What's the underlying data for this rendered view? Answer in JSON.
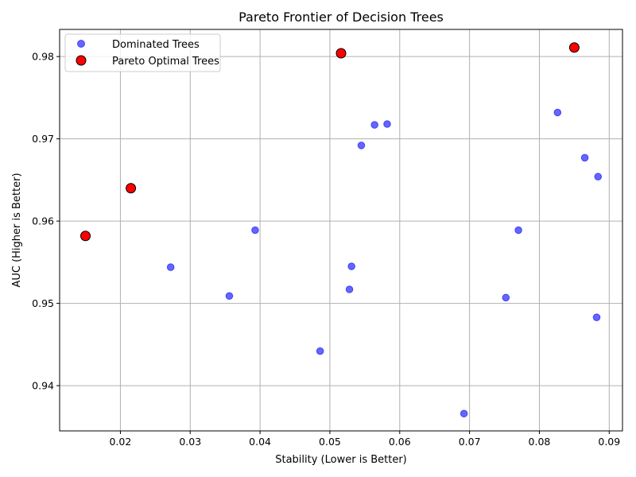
{
  "chart_data": {
    "type": "scatter",
    "title": "Pareto Frontier of Decision Trees",
    "xlabel": "Stability (Lower is Better)",
    "ylabel": "AUC (Higher is Better)",
    "xlim": [
      0.0113,
      0.0919
    ],
    "ylim": [
      0.9345,
      0.9833
    ],
    "xticks": [
      "0.02",
      "0.03",
      "0.04",
      "0.05",
      "0.06",
      "0.07",
      "0.08",
      "0.09"
    ],
    "yticks": [
      "0.94",
      "0.95",
      "0.96",
      "0.97",
      "0.98"
    ],
    "grid": true,
    "legend_position": "upper-left",
    "series": [
      {
        "name": "Dominated Trees",
        "color": "#0000ff",
        "points": [
          {
            "x": 0.0272,
            "y": 0.9544
          },
          {
            "x": 0.0356,
            "y": 0.9509
          },
          {
            "x": 0.0393,
            "y": 0.9589
          },
          {
            "x": 0.0486,
            "y": 0.9442
          },
          {
            "x": 0.0528,
            "y": 0.9517
          },
          {
            "x": 0.0531,
            "y": 0.9545
          },
          {
            "x": 0.0545,
            "y": 0.9692
          },
          {
            "x": 0.0564,
            "y": 0.9717
          },
          {
            "x": 0.0582,
            "y": 0.9718
          },
          {
            "x": 0.0692,
            "y": 0.9366
          },
          {
            "x": 0.0752,
            "y": 0.9507
          },
          {
            "x": 0.077,
            "y": 0.9589
          },
          {
            "x": 0.0826,
            "y": 0.9732
          },
          {
            "x": 0.0865,
            "y": 0.9677
          },
          {
            "x": 0.0882,
            "y": 0.9483
          },
          {
            "x": 0.0884,
            "y": 0.9654
          }
        ]
      },
      {
        "name": "Pareto Optimal Trees",
        "color": "#ff0000",
        "points": [
          {
            "x": 0.015,
            "y": 0.9582
          },
          {
            "x": 0.0215,
            "y": 0.964
          },
          {
            "x": 0.0516,
            "y": 0.9804
          },
          {
            "x": 0.085,
            "y": 0.9811
          }
        ]
      }
    ]
  }
}
